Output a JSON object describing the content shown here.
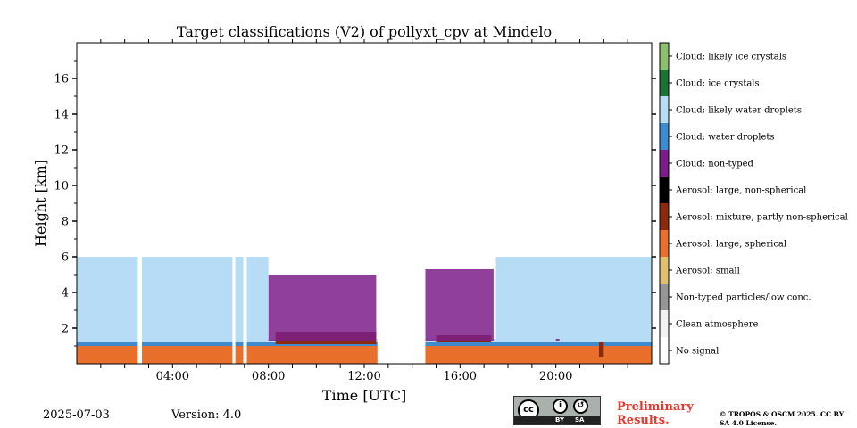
{
  "chart_data": {
    "type": "heatmap",
    "title": "Target classifications (V2) of pollyxt_cpv at Mindelo",
    "xlabel": "Time [UTC]",
    "ylabel": "Height [km]",
    "xlim_hours": [
      0,
      24
    ],
    "ylim_km": [
      0,
      18
    ],
    "x_ticks": [
      {
        "hour": 4,
        "label": "04:00"
      },
      {
        "hour": 8,
        "label": "08:00"
      },
      {
        "hour": 12,
        "label": "12:00"
      },
      {
        "hour": 16,
        "label": "16:00"
      },
      {
        "hour": 20,
        "label": "20:00"
      }
    ],
    "y_ticks": [
      {
        "value": 2,
        "label": "2"
      },
      {
        "value": 4,
        "label": "4"
      },
      {
        "value": 6,
        "label": "6"
      },
      {
        "value": 8,
        "label": "8"
      },
      {
        "value": 10,
        "label": "10"
      },
      {
        "value": 12,
        "label": "12"
      },
      {
        "value": 14,
        "label": "14"
      },
      {
        "value": 16,
        "label": "16"
      }
    ],
    "classes": [
      {
        "value": 0,
        "label": "No signal",
        "color": "#ffffff"
      },
      {
        "value": 1,
        "label": "Clean atmosphere",
        "color": "#f2f2f2"
      },
      {
        "value": 2,
        "label": "Non-typed particles/low conc.",
        "color": "#959595"
      },
      {
        "value": 3,
        "label": "Aerosol: small",
        "color": "#e0c070"
      },
      {
        "value": 4,
        "label": "Aerosol: large, spherical",
        "color": "#e86f2c"
      },
      {
        "value": 5,
        "label": "Aerosol: mixture, partly non-spherical",
        "color": "#8b2a0f"
      },
      {
        "value": 6,
        "label": "Aerosol: large, non-spherical",
        "color": "#000000"
      },
      {
        "value": 7,
        "label": "Cloud: non-typed",
        "color": "#7c1e8a"
      },
      {
        "value": 8,
        "label": "Cloud: water droplets",
        "color": "#3e8ccf"
      },
      {
        "value": 9,
        "label": "Cloud: likely water droplets",
        "color": "#b7dcf5"
      },
      {
        "value": 10,
        "label": "Cloud: ice crystals",
        "color": "#1a7332"
      },
      {
        "value": 11,
        "label": "Cloud: likely ice crystals",
        "color": "#8cbf6e"
      }
    ],
    "no_signal_gaps_hours": [
      [
        2.55,
        2.72
      ],
      [
        6.5,
        6.62
      ],
      [
        6.95,
        7.1
      ],
      [
        12.55,
        14.55
      ]
    ],
    "regions": [
      {
        "class": 4,
        "t0": 0,
        "t1": 24,
        "h0": 0,
        "h1": 1.0
      },
      {
        "class": 8,
        "t0": 0,
        "t1": 24,
        "h0": 1.0,
        "h1": 1.2
      },
      {
        "class": 9,
        "t0": 0,
        "t1": 24,
        "h0": 1.2,
        "h1": 1.4
      },
      {
        "class": 5,
        "t0": 8.3,
        "t1": 12.5,
        "h0": 1.1,
        "h1": 1.8
      },
      {
        "class": 5,
        "t0": 15.0,
        "t1": 17.3,
        "h0": 1.2,
        "h1": 1.6
      },
      {
        "class": 7,
        "t0": 8.0,
        "t1": 12.5,
        "h0": 1.3,
        "h1": 5.0
      },
      {
        "class": 7,
        "t0": 14.55,
        "t1": 17.4,
        "h0": 1.3,
        "h1": 5.3
      },
      {
        "class": 7,
        "t0": 20.0,
        "t1": 20.15,
        "h0": 1.3,
        "h1": 5.5
      },
      {
        "class": 9,
        "t0": 0,
        "t1": 8.0,
        "h0": 1.4,
        "h1": 6.0
      },
      {
        "class": 9,
        "t0": 17.5,
        "t1": 24,
        "h0": 1.4,
        "h1": 6.0
      },
      {
        "class": 5,
        "t0": 21.8,
        "t1": 22.0,
        "h0": 0.4,
        "h1": 1.2
      }
    ]
  },
  "footer": {
    "date": "2025-07-03",
    "version": "Version: 4.0",
    "preliminary": "Preliminary Results.",
    "copyright": "© TROPOS & OSCM 2025. CC BY SA 4.0 License.",
    "license_badge": {
      "main": "cc",
      "by": "BY",
      "sa": "SA"
    }
  }
}
